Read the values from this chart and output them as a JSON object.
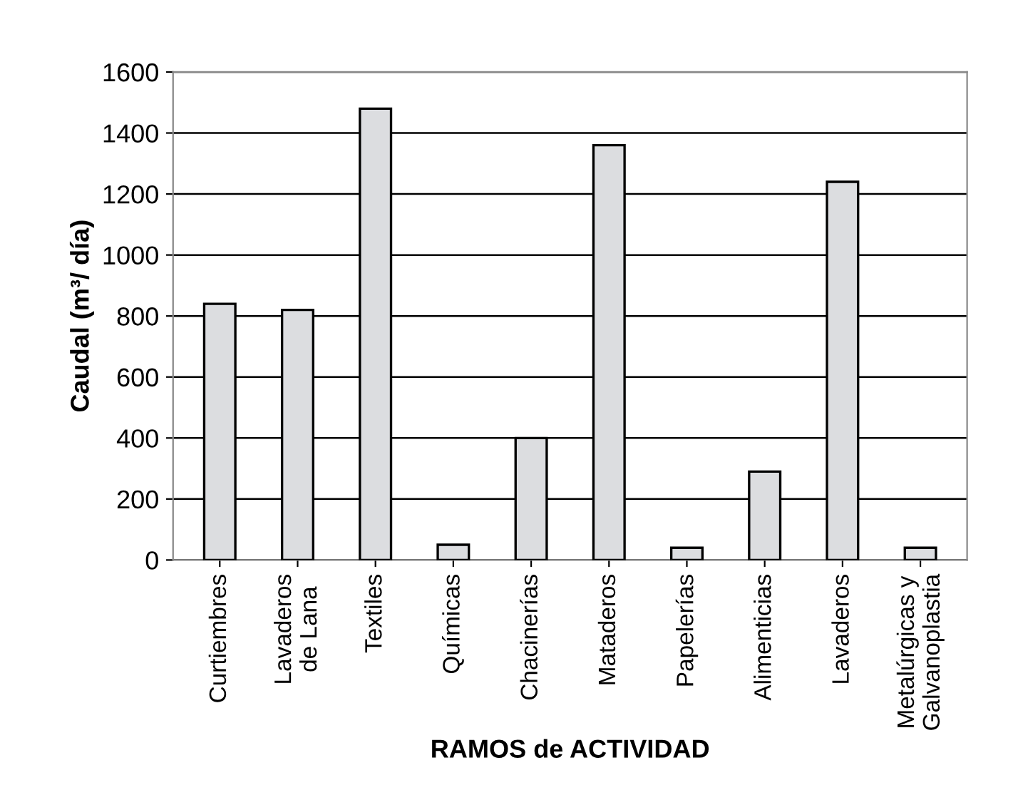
{
  "chart_data": {
    "type": "bar",
    "xlabel": "RAMOS de ACTIVIDAD",
    "ylabel": "Caudal (m³/ día)",
    "categories": [
      "Curtiembres",
      "Lavaderos\nde Lana",
      "Textiles",
      "Químicas",
      "Chacinerías",
      "Mataderos",
      "Papelerías",
      "Alimenticias",
      "Lavaderos",
      "Metalúrgicas y\nGalvanoplastia"
    ],
    "values": [
      840,
      820,
      1480,
      50,
      400,
      1360,
      40,
      290,
      1240,
      40
    ],
    "color": "#dcdde0",
    "ylim": [
      0,
      1600
    ],
    "yticks": [
      0,
      200,
      400,
      600,
      800,
      1000,
      1200,
      1400,
      1600
    ],
    "grid": "y"
  }
}
